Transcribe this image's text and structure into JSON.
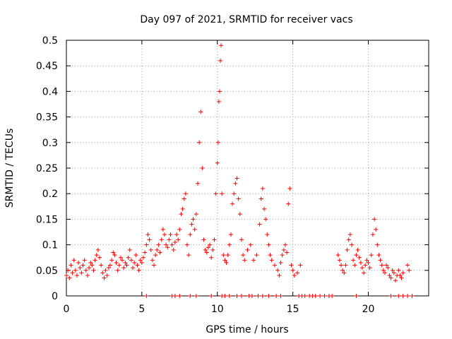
{
  "chart_data": {
    "type": "scatter",
    "title": "Day 097 of 2021, SRMTID for receiver vacs",
    "xlabel": "GPS time / hours",
    "ylabel": "SRMTID / TECUs",
    "xlim": [
      0,
      24
    ],
    "ylim": [
      0,
      0.5
    ],
    "x_ticks": [
      0,
      5,
      10,
      15,
      20
    ],
    "x_tick_labels": [
      "0",
      "5",
      "10",
      "15",
      "20"
    ],
    "y_ticks": [
      0,
      0.05,
      0.1,
      0.15,
      0.2,
      0.25,
      0.3,
      0.35,
      0.4,
      0.45,
      0.5
    ],
    "y_tick_labels": [
      "0",
      "0.05",
      "0.1",
      "0.15",
      "0.2",
      "0.25",
      "0.3",
      "0.35",
      "0.4",
      "0.45",
      "0.5"
    ],
    "grid": true,
    "marker": "+",
    "color": "#ff0000",
    "series": [
      {
        "name": "SRMTID",
        "points": [
          [
            0.0,
            0.04
          ],
          [
            0.1,
            0.05
          ],
          [
            0.2,
            0.035
          ],
          [
            0.3,
            0.06
          ],
          [
            0.4,
            0.045
          ],
          [
            0.5,
            0.07
          ],
          [
            0.6,
            0.05
          ],
          [
            0.7,
            0.04
          ],
          [
            0.8,
            0.065
          ],
          [
            0.9,
            0.055
          ],
          [
            1.0,
            0.045
          ],
          [
            1.1,
            0.06
          ],
          [
            1.2,
            0.07
          ],
          [
            1.3,
            0.05
          ],
          [
            1.4,
            0.04
          ],
          [
            1.5,
            0.055
          ],
          [
            1.6,
            0.065
          ],
          [
            1.7,
            0.06
          ],
          [
            1.8,
            0.05
          ],
          [
            1.9,
            0.07
          ],
          [
            2.0,
            0.08
          ],
          [
            2.1,
            0.09
          ],
          [
            2.2,
            0.075
          ],
          [
            2.3,
            0.06
          ],
          [
            2.4,
            0.045
          ],
          [
            2.5,
            0.035
          ],
          [
            2.6,
            0.05
          ],
          [
            2.7,
            0.04
          ],
          [
            2.8,
            0.055
          ],
          [
            2.9,
            0.06
          ],
          [
            3.0,
            0.07
          ],
          [
            3.1,
            0.085
          ],
          [
            3.2,
            0.08
          ],
          [
            3.3,
            0.065
          ],
          [
            3.4,
            0.05
          ],
          [
            3.5,
            0.06
          ],
          [
            3.6,
            0.075
          ],
          [
            3.7,
            0.07
          ],
          [
            3.8,
            0.055
          ],
          [
            3.9,
            0.065
          ],
          [
            4.0,
            0.06
          ],
          [
            4.1,
            0.075
          ],
          [
            4.2,
            0.09
          ],
          [
            4.3,
            0.07
          ],
          [
            4.4,
            0.055
          ],
          [
            4.5,
            0.065
          ],
          [
            4.6,
            0.08
          ],
          [
            4.7,
            0.06
          ],
          [
            4.8,
            0.05
          ],
          [
            4.9,
            0.07
          ],
          [
            5.0,
            0.065
          ],
          [
            5.1,
            0.075
          ],
          [
            5.2,
            0.085
          ],
          [
            5.3,
            0.1
          ],
          [
            5.4,
            0.12
          ],
          [
            5.5,
            0.11
          ],
          [
            5.6,
            0.09
          ],
          [
            5.7,
            0.07
          ],
          [
            5.8,
            0.06
          ],
          [
            5.9,
            0.08
          ],
          [
            6.0,
            0.09
          ],
          [
            6.1,
            0.1
          ],
          [
            6.2,
            0.085
          ],
          [
            6.3,
            0.11
          ],
          [
            6.4,
            0.13
          ],
          [
            6.5,
            0.12
          ],
          [
            6.6,
            0.1
          ],
          [
            6.7,
            0.095
          ],
          [
            6.8,
            0.11
          ],
          [
            6.9,
            0.12
          ],
          [
            7.0,
            0.1
          ],
          [
            7.1,
            0.09
          ],
          [
            7.2,
            0.105
          ],
          [
            7.3,
            0.12
          ],
          [
            7.4,
            0.11
          ],
          [
            7.5,
            0.13
          ],
          [
            7.6,
            0.16
          ],
          [
            7.7,
            0.17
          ],
          [
            7.8,
            0.19
          ],
          [
            7.9,
            0.2
          ],
          [
            8.0,
            0.1
          ],
          [
            8.1,
            0.08
          ],
          [
            8.2,
            0.12
          ],
          [
            8.3,
            0.14
          ],
          [
            8.4,
            0.15
          ],
          [
            8.5,
            0.13
          ],
          [
            8.6,
            0.16
          ],
          [
            8.7,
            0.22
          ],
          [
            8.8,
            0.3
          ],
          [
            8.9,
            0.36
          ],
          [
            9.0,
            0.25
          ],
          [
            9.1,
            0.11
          ],
          [
            9.2,
            0.09
          ],
          [
            9.3,
            0.085
          ],
          [
            9.4,
            0.095
          ],
          [
            9.5,
            0.1
          ],
          [
            9.6,
            0.075
          ],
          [
            9.7,
            0.09
          ],
          [
            9.8,
            0.11
          ],
          [
            9.9,
            0.2
          ],
          [
            10.0,
            0.26
          ],
          [
            10.05,
            0.3
          ],
          [
            10.1,
            0.38
          ],
          [
            10.15,
            0.4
          ],
          [
            10.2,
            0.46
          ],
          [
            10.25,
            0.49
          ],
          [
            10.3,
            0.2
          ],
          [
            10.4,
            0.08
          ],
          [
            10.5,
            0.07
          ],
          [
            10.6,
            0.065
          ],
          [
            10.7,
            0.08
          ],
          [
            10.8,
            0.1
          ],
          [
            10.9,
            0.12
          ],
          [
            11.0,
            0.18
          ],
          [
            11.1,
            0.2
          ],
          [
            11.2,
            0.22
          ],
          [
            11.3,
            0.23
          ],
          [
            11.4,
            0.19
          ],
          [
            11.5,
            0.16
          ],
          [
            11.6,
            0.11
          ],
          [
            11.7,
            0.08
          ],
          [
            11.8,
            0.07
          ],
          [
            12.0,
            0.09
          ],
          [
            12.2,
            0.1
          ],
          [
            12.4,
            0.07
          ],
          [
            12.6,
            0.08
          ],
          [
            12.8,
            0.14
          ],
          [
            12.9,
            0.19
          ],
          [
            13.0,
            0.21
          ],
          [
            13.1,
            0.17
          ],
          [
            13.2,
            0.15
          ],
          [
            13.3,
            0.12
          ],
          [
            13.4,
            0.1
          ],
          [
            13.5,
            0.08
          ],
          [
            13.6,
            0.07
          ],
          [
            13.8,
            0.06
          ],
          [
            14.0,
            0.05
          ],
          [
            14.1,
            0.04
          ],
          [
            14.2,
            0.065
          ],
          [
            14.3,
            0.08
          ],
          [
            14.4,
            0.09
          ],
          [
            14.5,
            0.1
          ],
          [
            14.6,
            0.085
          ],
          [
            14.7,
            0.18
          ],
          [
            14.8,
            0.21
          ],
          [
            14.9,
            0.06
          ],
          [
            15.0,
            0.05
          ],
          [
            15.1,
            0.04
          ],
          [
            15.3,
            0.045
          ],
          [
            15.5,
            0.06
          ],
          [
            18.0,
            0.08
          ],
          [
            18.1,
            0.07
          ],
          [
            18.2,
            0.06
          ],
          [
            18.3,
            0.05
          ],
          [
            18.4,
            0.045
          ],
          [
            18.5,
            0.06
          ],
          [
            18.6,
            0.09
          ],
          [
            18.7,
            0.11
          ],
          [
            18.8,
            0.12
          ],
          [
            18.9,
            0.1
          ],
          [
            19.0,
            0.07
          ],
          [
            19.1,
            0.06
          ],
          [
            19.2,
            0.08
          ],
          [
            19.3,
            0.09
          ],
          [
            19.4,
            0.075
          ],
          [
            19.5,
            0.065
          ],
          [
            19.6,
            0.055
          ],
          [
            19.7,
            0.045
          ],
          [
            19.8,
            0.06
          ],
          [
            19.9,
            0.07
          ],
          [
            20.0,
            0.065
          ],
          [
            20.1,
            0.055
          ],
          [
            20.2,
            0.08
          ],
          [
            20.3,
            0.12
          ],
          [
            20.4,
            0.15
          ],
          [
            20.5,
            0.13
          ],
          [
            20.6,
            0.1
          ],
          [
            20.7,
            0.08
          ],
          [
            20.8,
            0.07
          ],
          [
            20.9,
            0.06
          ],
          [
            21.0,
            0.05
          ],
          [
            21.1,
            0.045
          ],
          [
            21.2,
            0.06
          ],
          [
            21.3,
            0.055
          ],
          [
            21.4,
            0.04
          ],
          [
            21.5,
            0.035
          ],
          [
            21.6,
            0.05
          ],
          [
            21.7,
            0.045
          ],
          [
            21.8,
            0.03
          ],
          [
            21.9,
            0.04
          ],
          [
            22.0,
            0.05
          ],
          [
            22.1,
            0.04
          ],
          [
            22.2,
            0.035
          ],
          [
            22.3,
            0.045
          ],
          [
            22.6,
            0.06
          ],
          [
            22.7,
            0.05
          ],
          [
            5.3,
            0.0
          ],
          [
            7.0,
            0.0
          ],
          [
            7.2,
            0.0
          ],
          [
            7.5,
            0.0
          ],
          [
            8.2,
            0.0
          ],
          [
            8.6,
            0.0
          ],
          [
            9.6,
            0.0
          ],
          [
            10.3,
            0.0
          ],
          [
            10.5,
            0.0
          ],
          [
            10.8,
            0.0
          ],
          [
            11.3,
            0.0
          ],
          [
            11.6,
            0.0
          ],
          [
            12.1,
            0.0
          ],
          [
            12.3,
            0.0
          ],
          [
            12.7,
            0.0
          ],
          [
            13.0,
            0.0
          ],
          [
            13.4,
            0.0
          ],
          [
            13.9,
            0.0
          ],
          [
            14.2,
            0.0
          ],
          [
            15.4,
            0.0
          ],
          [
            15.6,
            0.0
          ],
          [
            15.8,
            0.0
          ],
          [
            16.1,
            0.0
          ],
          [
            16.3,
            0.0
          ],
          [
            16.5,
            0.0
          ],
          [
            16.8,
            0.0
          ],
          [
            17.1,
            0.0
          ],
          [
            17.4,
            0.0
          ],
          [
            17.6,
            0.0
          ],
          [
            19.2,
            0.0
          ],
          [
            21.5,
            0.0
          ],
          [
            22.0,
            0.0
          ],
          [
            22.3,
            0.0
          ],
          [
            22.6,
            0.0
          ],
          [
            22.9,
            0.0
          ]
        ]
      }
    ]
  }
}
